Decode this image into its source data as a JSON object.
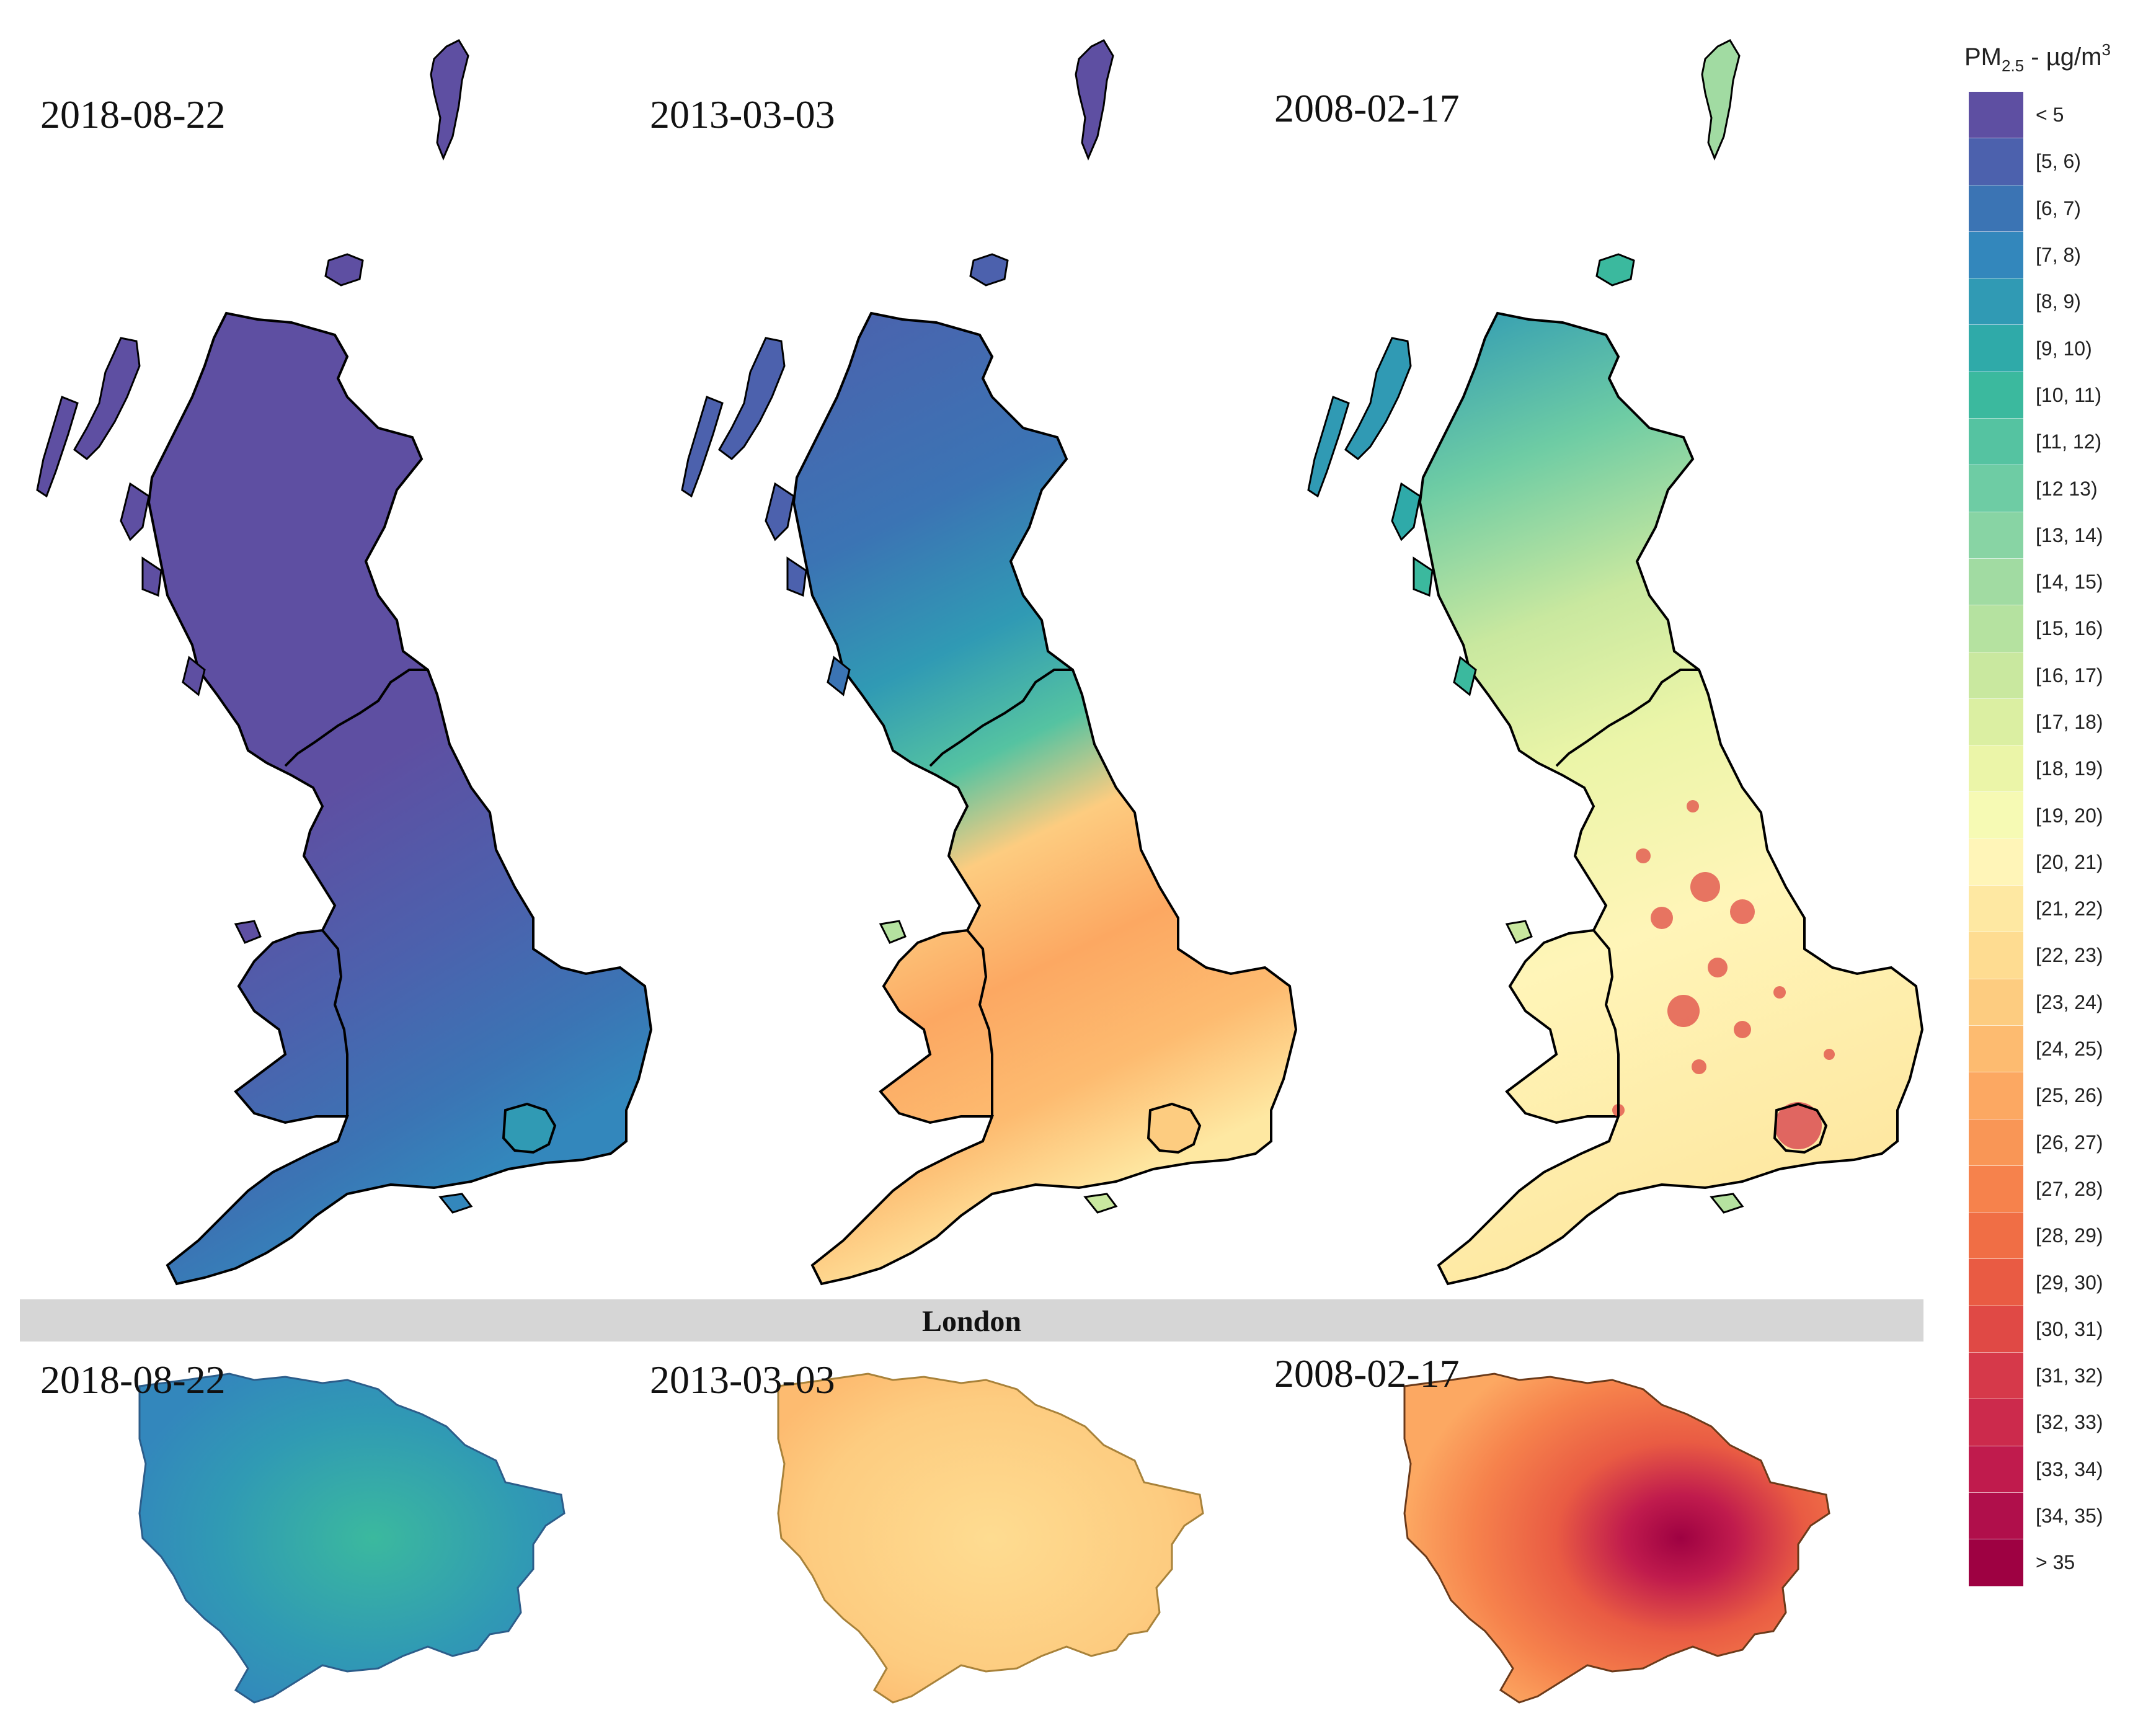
{
  "panels_top": [
    {
      "date": "2018-08-22"
    },
    {
      "date": "2013-03-03"
    },
    {
      "date": "2008-02-17"
    }
  ],
  "banner": {
    "label": "London"
  },
  "panels_bottom": [
    {
      "date": "2018-08-22"
    },
    {
      "date": "2013-03-03"
    },
    {
      "date": "2008-02-17"
    }
  ],
  "legend": {
    "title_main": "PM",
    "title_sub": "2.5",
    "title_rest": " - µg/m",
    "title_sup": "3",
    "classes": [
      {
        "label": "< 5",
        "color": "#5e4fa2"
      },
      {
        "label": "[5, 6)",
        "color": "#4c61ad"
      },
      {
        "label": "[6, 7)",
        "color": "#3b74b4"
      },
      {
        "label": "[7, 8)",
        "color": "#3387bc"
      },
      {
        "label": "[8, 9)",
        "color": "#309ab4"
      },
      {
        "label": "[9, 10)",
        "color": "#2faaa9"
      },
      {
        "label": "[10, 11)",
        "color": "#3bb99e"
      },
      {
        "label": "[11, 12)",
        "color": "#55c3a1"
      },
      {
        "label": "[12 13)",
        "color": "#6ecca4"
      },
      {
        "label": "[13, 14)",
        "color": "#88d4a4"
      },
      {
        "label": "[14, 15)",
        "color": "#a1dba2"
      },
      {
        "label": "[15, 16)",
        "color": "#b5e2a0"
      },
      {
        "label": "[16, 17)",
        "color": "#c9e89f"
      },
      {
        "label": "[17, 18)",
        "color": "#dbefa2"
      },
      {
        "label": "[18, 19)",
        "color": "#ebf5a8"
      },
      {
        "label": "[19, 20)",
        "color": "#f6fab4"
      },
      {
        "label": "[20, 21)",
        "color": "#fff5b8"
      },
      {
        "label": "[21, 22)",
        "color": "#fee8a2"
      },
      {
        "label": "[22, 23)",
        "color": "#fedc91"
      },
      {
        "label": "[23, 24)",
        "color": "#fdcc80"
      },
      {
        "label": "[24, 25)",
        "color": "#fdbb70"
      },
      {
        "label": "[25, 26)",
        "color": "#fca862"
      },
      {
        "label": "[26, 27)",
        "color": "#f99656"
      },
      {
        "label": "[27, 28)",
        "color": "#f6824c"
      },
      {
        "label": "[28, 29)",
        "color": "#f06e45"
      },
      {
        "label": "[29, 30)",
        "color": "#e95b43"
      },
      {
        "label": "[30, 31)",
        "color": "#e04945"
      },
      {
        "label": "[31, 32)",
        "color": "#d6394a"
      },
      {
        "label": "[32, 33)",
        "color": "#cc2a4c"
      },
      {
        "label": "[33, 34)",
        "color": "#c01b4d"
      },
      {
        "label": "[34, 35)",
        "color": "#b00f4b"
      },
      {
        "label": "> 35",
        "color": "#9e0142"
      }
    ]
  }
}
